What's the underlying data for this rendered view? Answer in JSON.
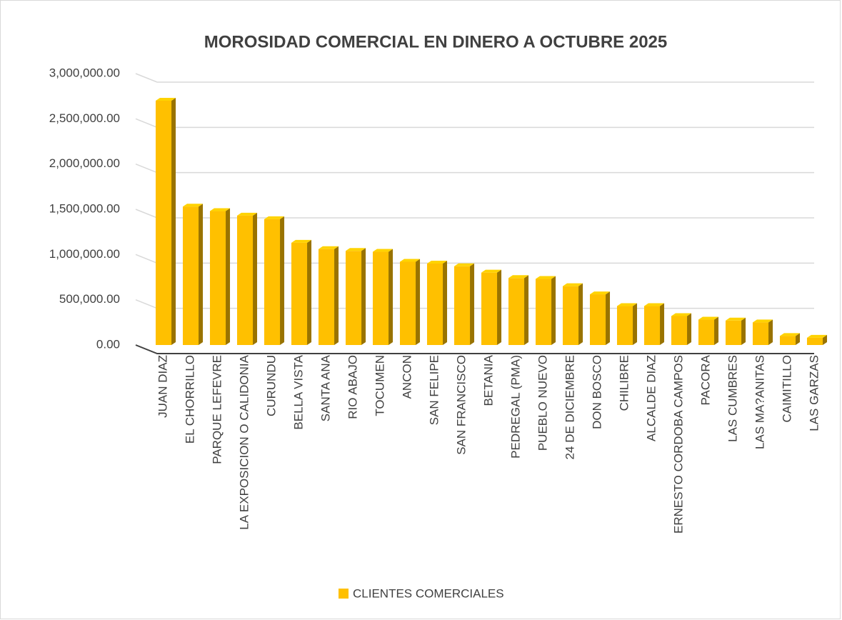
{
  "chart_data": {
    "type": "bar3d",
    "title": "MOROSIDAD COMERCIAL EN DINERO A OCTUBRE 2025",
    "categories": [
      "JUAN DIAZ",
      "EL CHORRILLO",
      "PARQUE LEFEVRE",
      "LA EXPOSICION O CALIDONIA",
      "CURUNDU",
      "BELLA VISTA",
      "SANTA ANA",
      "RIO ABAJO",
      "TOCUMEN",
      "ANCON",
      "SAN FELIPE",
      "SAN FRANCISCO",
      "BETANIA",
      "PEDREGAL (PMA)",
      "PUEBLO NUEVO",
      "24 DE DICIEMBRE",
      "DON BOSCO",
      "CHILIBRE",
      "ALCALDE DIAZ",
      "ERNESTO CORDOBA CAMPOS",
      "PACORA",
      "LAS CUMBRES",
      "LAS MA?ANITAS",
      "CAIMITILLO",
      "LAS GARZAS"
    ],
    "series": [
      {
        "name": "CLIENTES COMERCIALES",
        "color": "#ffc000",
        "values": [
          2700000,
          1530000,
          1480000,
          1430000,
          1390000,
          1130000,
          1060000,
          1040000,
          1030000,
          920000,
          900000,
          870000,
          800000,
          740000,
          730000,
          650000,
          560000,
          430000,
          430000,
          320000,
          280000,
          270000,
          250000,
          100000,
          80000
        ]
      }
    ],
    "ylim": [
      0,
      3000000
    ],
    "yticks": [
      {
        "value": 0,
        "label": "0.00"
      },
      {
        "value": 500000,
        "label": "500,000.00"
      },
      {
        "value": 1000000,
        "label": "1,000,000.00"
      },
      {
        "value": 1500000,
        "label": "1,500,000.00"
      },
      {
        "value": 2000000,
        "label": "2,000,000.00"
      },
      {
        "value": 2500000,
        "label": "2,500,000.00"
      },
      {
        "value": 3000000,
        "label": "3,000,000.00"
      }
    ],
    "grid": true,
    "legend": "bottom"
  }
}
